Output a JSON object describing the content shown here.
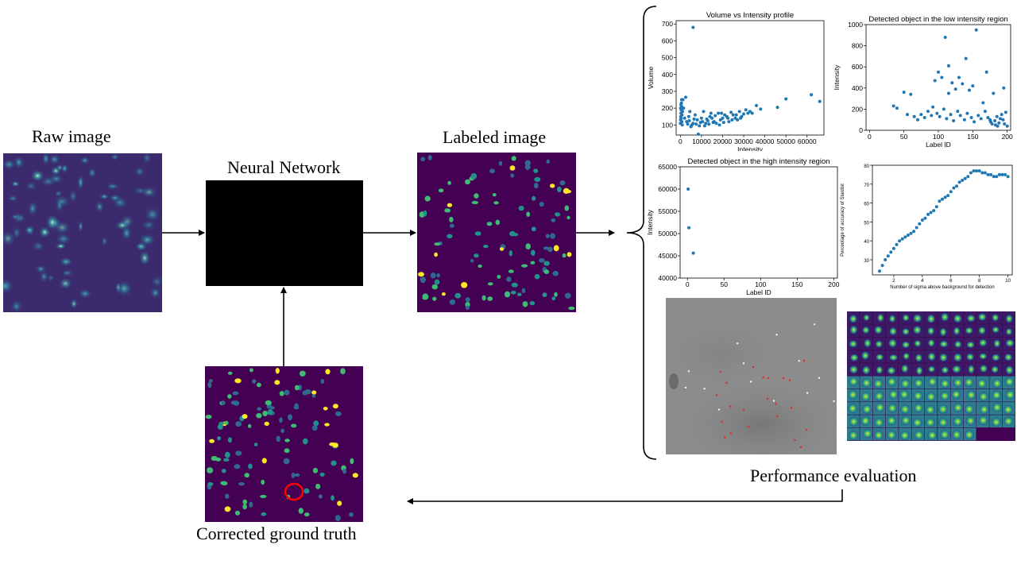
{
  "labels": {
    "raw": "Raw image",
    "nn": "Neural Network",
    "labeled": "Labeled image",
    "gt": "Corrected ground truth",
    "perf": "Performance evaluation"
  },
  "colors": {
    "viridis_bg": "#440154",
    "viridis_green": "#3fbc73",
    "viridis_teal": "#21918c",
    "viridis_blue": "#31688e",
    "viridis_yellow": "#fde725",
    "point": "#1f77b4",
    "circle": "#ff0000"
  },
  "chart_data": [
    {
      "type": "scatter",
      "title": "Volume vs Intensity profile",
      "xlabel": "Intensity",
      "ylabel": "Volume",
      "xlim": [
        -2000,
        68000
      ],
      "ylim": [
        40,
        720
      ],
      "xticks": [
        0,
        10000,
        20000,
        30000,
        40000,
        50000,
        60000
      ],
      "yticks": [
        100,
        200,
        300,
        400,
        500,
        600,
        700
      ],
      "points": [
        [
          6000,
          680
        ],
        [
          50000,
          255
        ],
        [
          62000,
          280
        ],
        [
          66000,
          240
        ],
        [
          46000,
          205
        ],
        [
          36000,
          215
        ],
        [
          31000,
          190
        ],
        [
          32000,
          170
        ],
        [
          28000,
          180
        ],
        [
          25000,
          160
        ],
        [
          22000,
          150
        ],
        [
          20000,
          140
        ],
        [
          18000,
          170
        ],
        [
          16000,
          120
        ],
        [
          14000,
          150
        ],
        [
          12000,
          110
        ],
        [
          10000,
          140
        ],
        [
          9000,
          95
        ],
        [
          8000,
          130
        ],
        [
          7000,
          160
        ],
        [
          6000,
          110
        ],
        [
          5000,
          90
        ],
        [
          4000,
          150
        ],
        [
          3000,
          120
        ],
        [
          2000,
          140
        ],
        [
          1500,
          200
        ],
        [
          1000,
          180
        ],
        [
          800,
          160
        ],
        [
          600,
          210
        ],
        [
          500,
          230
        ],
        [
          400,
          190
        ],
        [
          300,
          170
        ],
        [
          200,
          150
        ],
        [
          100,
          130
        ],
        [
          50,
          110
        ],
        [
          1200,
          250
        ],
        [
          2500,
          265
        ],
        [
          4500,
          180
        ],
        [
          11000,
          180
        ],
        [
          13000,
          125
        ],
        [
          15000,
          140
        ],
        [
          17000,
          110
        ],
        [
          19000,
          130
        ],
        [
          21000,
          160
        ],
        [
          23000,
          120
        ],
        [
          24000,
          175
        ],
        [
          26000,
          140
        ],
        [
          27000,
          130
        ],
        [
          29000,
          150
        ],
        [
          30000,
          165
        ],
        [
          33000,
          180
        ],
        [
          8500,
          45
        ],
        [
          5500,
          100
        ],
        [
          9500,
          115
        ],
        [
          10500,
          120
        ],
        [
          11500,
          95
        ],
        [
          12500,
          135
        ],
        [
          13500,
          105
        ],
        [
          14500,
          170
        ],
        [
          15500,
          115
        ],
        [
          700,
          120
        ],
        [
          900,
          100
        ],
        [
          350,
          140
        ],
        [
          250,
          220
        ],
        [
          150,
          200
        ],
        [
          600,
          250
        ],
        [
          3500,
          105
        ],
        [
          4200,
          125
        ],
        [
          6500,
          135
        ],
        [
          7500,
          105
        ],
        [
          16500,
          155
        ],
        [
          18500,
          100
        ],
        [
          19500,
          170
        ],
        [
          20500,
          115
        ],
        [
          22500,
          140
        ],
        [
          24500,
          130
        ],
        [
          26500,
          160
        ],
        [
          28500,
          140
        ],
        [
          34000,
          170
        ],
        [
          38000,
          195
        ]
      ]
    },
    {
      "type": "scatter",
      "title": "Detected object in the low intensity region",
      "xlabel": "Label ID",
      "ylabel": "Intensity",
      "xlim": [
        -5,
        205
      ],
      "ylim": [
        0,
        1000
      ],
      "xticks": [
        0,
        50,
        100,
        150,
        200
      ],
      "yticks": [
        0,
        200,
        400,
        600,
        800,
        1000
      ],
      "points": [
        [
          110,
          880
        ],
        [
          155,
          950
        ],
        [
          140,
          680
        ],
        [
          100,
          550
        ],
        [
          105,
          500
        ],
        [
          115,
          610
        ],
        [
          95,
          470
        ],
        [
          120,
          450
        ],
        [
          125,
          390
        ],
        [
          130,
          500
        ],
        [
          135,
          440
        ],
        [
          145,
          380
        ],
        [
          150,
          420
        ],
        [
          170,
          550
        ],
        [
          180,
          350
        ],
        [
          195,
          400
        ],
        [
          60,
          340
        ],
        [
          35,
          230
        ],
        [
          40,
          210
        ],
        [
          50,
          360
        ],
        [
          55,
          150
        ],
        [
          65,
          130
        ],
        [
          70,
          100
        ],
        [
          75,
          150
        ],
        [
          80,
          120
        ],
        [
          85,
          180
        ],
        [
          90,
          140
        ],
        [
          92,
          220
        ],
        [
          98,
          160
        ],
        [
          102,
          130
        ],
        [
          108,
          200
        ],
        [
          112,
          110
        ],
        [
          118,
          150
        ],
        [
          122,
          90
        ],
        [
          128,
          180
        ],
        [
          132,
          140
        ],
        [
          138,
          100
        ],
        [
          142,
          160
        ],
        [
          148,
          120
        ],
        [
          152,
          80
        ],
        [
          158,
          140
        ],
        [
          162,
          110
        ],
        [
          165,
          260
        ],
        [
          168,
          180
        ],
        [
          172,
          120
        ],
        [
          175,
          100
        ],
        [
          178,
          60
        ],
        [
          182,
          90
        ],
        [
          185,
          130
        ],
        [
          188,
          70
        ],
        [
          190,
          110
        ],
        [
          192,
          150
        ],
        [
          196,
          60
        ],
        [
          198,
          170
        ],
        [
          200,
          40
        ],
        [
          183,
          50
        ],
        [
          176,
          80
        ],
        [
          186,
          40
        ],
        [
          194,
          100
        ],
        [
          115,
          350
        ]
      ]
    },
    {
      "type": "scatter",
      "title": "Detected object in the high intensity region",
      "xlabel": "Label ID",
      "ylabel": "Intensity",
      "xlim": [
        -10,
        205
      ],
      "ylim": [
        40000,
        65000
      ],
      "xticks": [
        0,
        50,
        100,
        150,
        200
      ],
      "yticks": [
        40000,
        45000,
        50000,
        55000,
        60000,
        65000
      ],
      "points": [
        [
          1,
          60000
        ],
        [
          2,
          51300
        ],
        [
          8,
          45600
        ]
      ]
    },
    {
      "type": "line",
      "title": "",
      "xlabel": "Number of sigma above background for detection",
      "ylabel": "Percentage of accuracy of Stardist",
      "xlim": [
        0.5,
        10.3
      ],
      "ylim": [
        22,
        80
      ],
      "xticks": [
        2,
        4,
        6,
        8,
        10
      ],
      "yticks": [
        30,
        40,
        50,
        60,
        70,
        80
      ],
      "x": [
        1.0,
        1.2,
        1.4,
        1.6,
        1.8,
        2.0,
        2.2,
        2.4,
        2.6,
        2.8,
        3.0,
        3.2,
        3.4,
        3.6,
        3.8,
        4.0,
        4.2,
        4.4,
        4.6,
        4.8,
        5.0,
        5.2,
        5.4,
        5.6,
        5.8,
        6.0,
        6.2,
        6.4,
        6.6,
        6.8,
        7.0,
        7.2,
        7.4,
        7.6,
        7.8,
        8.0,
        8.2,
        8.4,
        8.6,
        8.8,
        9.0,
        9.2,
        9.4,
        9.6,
        9.8,
        10.0
      ],
      "y": [
        24,
        27,
        30,
        32,
        34,
        36,
        38,
        40,
        41,
        42,
        43,
        44,
        45,
        47,
        49,
        51,
        52,
        54,
        55,
        56,
        58,
        61,
        62,
        63,
        64,
        66,
        68,
        69,
        71,
        72,
        73,
        74,
        76,
        77,
        77,
        77,
        76,
        76,
        75,
        75,
        74,
        74,
        75,
        75,
        75,
        74
      ]
    }
  ]
}
